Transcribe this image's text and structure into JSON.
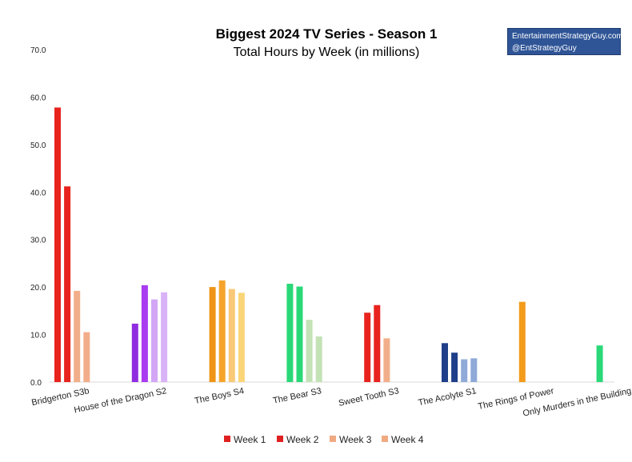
{
  "brand": {
    "line1": "EntertainmentStrategyGuy.com",
    "line2": "@EntStrategyGuy"
  },
  "chart_data": {
    "type": "bar",
    "title": "Biggest 2024 TV Series - Season 1",
    "subtitle": "Total Hours by Week (in millions)",
    "xlabel": "",
    "ylabel": "",
    "ylim": [
      0,
      70
    ],
    "yticks": [
      "0.0",
      "10.0",
      "20.0",
      "30.0",
      "40.0",
      "50.0",
      "60.0",
      "70.0"
    ],
    "grid": false,
    "legend_position": "bottom",
    "categories": [
      "Bridgerton S3b",
      "House of the Dragon S2",
      "The Boys S4",
      "The Bear S3",
      "Sweet Tooth S3",
      "The Acolyte S1",
      "The Rings of Power",
      "Only Murders in the Building"
    ],
    "series": [
      {
        "name": "Week 1",
        "values": [
          57.8,
          12.3,
          20.0,
          20.7,
          14.6,
          8.2,
          16.9,
          7.7
        ]
      },
      {
        "name": "Week 2",
        "values": [
          41.2,
          20.4,
          21.4,
          20.1,
          16.2,
          6.2,
          null,
          null
        ]
      },
      {
        "name": "Week 3",
        "values": [
          19.2,
          17.4,
          19.6,
          13.1,
          9.2,
          4.8,
          null,
          null
        ]
      },
      {
        "name": "Week 4",
        "values": [
          10.5,
          18.9,
          18.8,
          9.6,
          null,
          5.0,
          null,
          null
        ]
      }
    ],
    "legend_colors": [
      "#e02020",
      "#e02020",
      "#f0aa82",
      "#f0aa82"
    ],
    "bar_colors": [
      [
        "#e8231e",
        "#e8231e",
        "#f2ae8a",
        "#f2ae8a"
      ],
      [
        "#8f2ce0",
        "#a93bf0",
        "#d2a6f5",
        "#d9b3f7"
      ],
      [
        "#ef9417",
        "#f5a42b",
        "#f9c977",
        "#fad678"
      ],
      [
        "#2ad878",
        "#2ad878",
        "#c3e2b5",
        "#c3e2b5"
      ],
      [
        "#e8231e",
        "#e8231e",
        "#f2ae8a",
        null
      ],
      [
        "#1f3f8a",
        "#1f3f8a",
        "#8fa9d8",
        "#8fa9d8"
      ],
      [
        "#f39b1b",
        null,
        null,
        null
      ],
      [
        "#2ad878",
        null,
        null,
        null
      ]
    ]
  }
}
